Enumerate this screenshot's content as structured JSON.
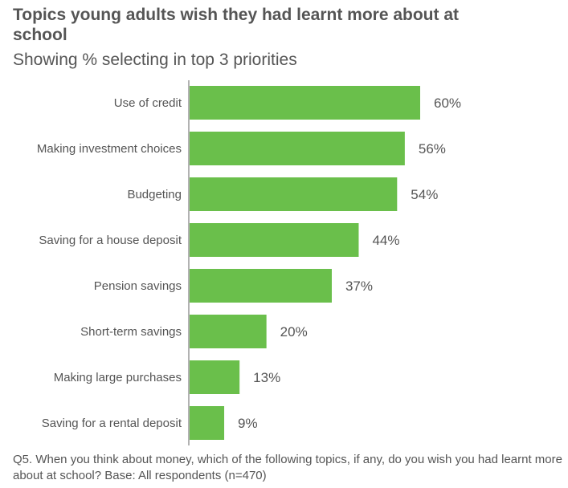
{
  "title": "Topics young adults wish they had learnt more about at school",
  "subtitle": "Showing % selecting in top 3 priorities",
  "footnote": "Q5. When you think about money, which of the following topics, if any, do you wish you had learnt more about at school? Base: All respondents (n=470)",
  "colors": {
    "bar": "#6abf4b",
    "axis": "#999999",
    "text": "#555555"
  },
  "chart_data": {
    "type": "bar",
    "orientation": "horizontal",
    "categories": [
      "Use of credit",
      "Making investment choices",
      "Budgeting",
      "Saving for a house deposit",
      "Pension savings",
      "Short-term savings",
      "Making large purchases",
      "Saving for a rental deposit"
    ],
    "values": [
      60,
      56,
      54,
      44,
      37,
      20,
      13,
      9
    ],
    "value_labels": [
      "60%",
      "56%",
      "54%",
      "44%",
      "37%",
      "20%",
      "13%",
      "9%"
    ],
    "title": "Topics young adults wish they had learnt more about at school",
    "subtitle": "Showing % selecting in top 3 priorities",
    "xlim": [
      0,
      60
    ],
    "grid": false,
    "legend": "none"
  }
}
